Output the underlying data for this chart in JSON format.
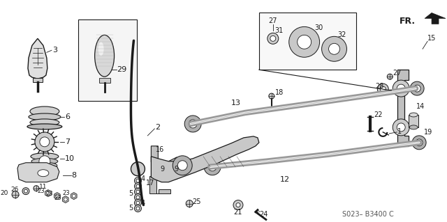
{
  "bg_color": "#ffffff",
  "part_number_label": "S023– B3400 C",
  "fr_label": "FR.",
  "dark": "#1a1a1a",
  "gray": "#888888",
  "light_gray": "#cccccc",
  "mid_gray": "#aaaaaa"
}
